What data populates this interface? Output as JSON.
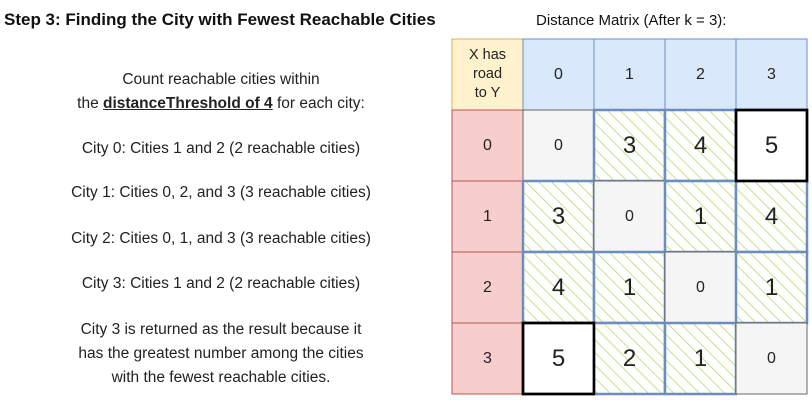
{
  "title": "Step 3: Finding the City with Fewest Reachable Cities",
  "matrix_title": "Distance Matrix (After k = 3):",
  "intro": {
    "line1": "Count reachable cities within",
    "line2_prefix": "the ",
    "line2_bold": "distanceThreshold of 4",
    "line2_suffix": " for each city:"
  },
  "city_lines": [
    "City 0: Cities 1 and 2 (2 reachable cities)",
    "City 1: Cities 0, 2, and 3 (3 reachable cities)",
    "City 2: Cities 0, 1, and 3 (3 reachable cities)",
    "City 3: Cities 1 and 2 (2 reachable cities)"
  ],
  "conclusion": {
    "line1": "City 3  is returned as the result because it",
    "line2": "has the greatest number among the cities",
    "line3": "with the fewest reachable cities."
  },
  "matrix": {
    "corner_label": [
      "X has",
      "road",
      "to Y"
    ],
    "col_headers": [
      "0",
      "1",
      "2",
      "3"
    ],
    "row_headers": [
      "0",
      "1",
      "2",
      "3"
    ],
    "values": [
      [
        0,
        3,
        4,
        5
      ],
      [
        3,
        0,
        1,
        4
      ],
      [
        4,
        1,
        0,
        1
      ],
      [
        5,
        2,
        1,
        0
      ]
    ],
    "threshold": 4,
    "colors": {
      "col_header_fill": "#dae8fc",
      "col_header_stroke": "#6c8ebf",
      "row_header_fill": "#f8cecc",
      "row_header_stroke": "#b85450",
      "corner_fill": "#fff2cc",
      "corner_stroke": "#d6b656",
      "diagonal_fill": "#f5f5f5",
      "reachable_hatch": "#a8d858",
      "reachable_stroke": "#6c8ebf",
      "unreachable_stroke": "#000000"
    }
  }
}
